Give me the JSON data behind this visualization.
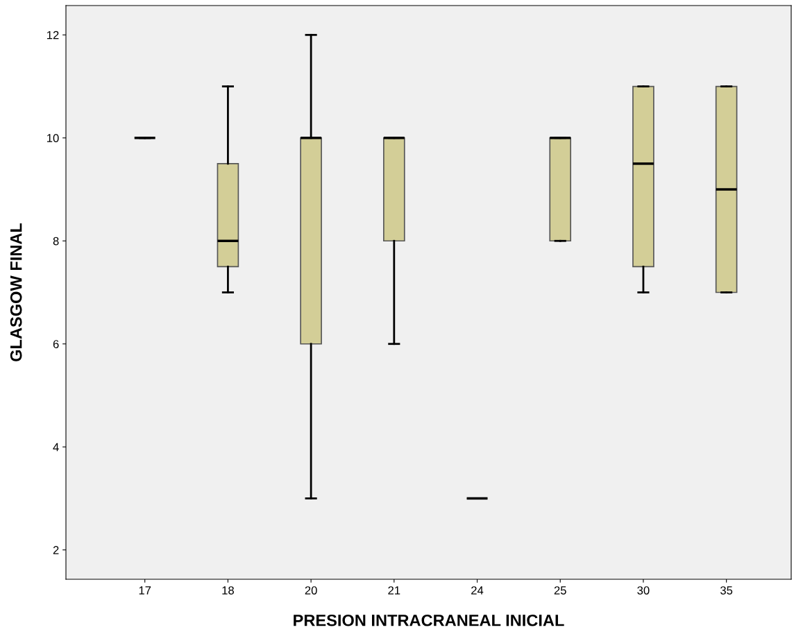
{
  "chart_data": {
    "type": "box",
    "xlabel": "PRESION INTRACRANEAL INICIAL",
    "ylabel": "GLASGOW FINAL",
    "categories": [
      "17",
      "18",
      "20",
      "21",
      "24",
      "25",
      "30",
      "35"
    ],
    "color": "#d3ce97",
    "boxes": [
      {
        "low": 10,
        "q1": 10,
        "median": 10,
        "q3": 10,
        "high": 10
      },
      {
        "low": 7,
        "q1": 7.5,
        "median": 8,
        "q3": 9.5,
        "high": 11
      },
      {
        "low": 3,
        "q1": 6,
        "median": 10,
        "q3": 10,
        "high": 12
      },
      {
        "low": 6,
        "q1": 8,
        "median": 10,
        "q3": 10,
        "high": 10
      },
      {
        "low": 3,
        "q1": 3,
        "median": 3,
        "q3": 3,
        "high": 3
      },
      {
        "low": 8,
        "q1": 8,
        "median": 10,
        "q3": 10,
        "high": 10
      },
      {
        "low": 7,
        "q1": 7.5,
        "median": 9.5,
        "q3": 11,
        "high": 11
      },
      {
        "low": 7,
        "q1": 7,
        "median": 9,
        "q3": 11,
        "high": 11
      }
    ],
    "ylim": [
      1.43,
      12.57
    ],
    "yticks": [
      2,
      4,
      6,
      8,
      10,
      12
    ],
    "grid": false
  }
}
